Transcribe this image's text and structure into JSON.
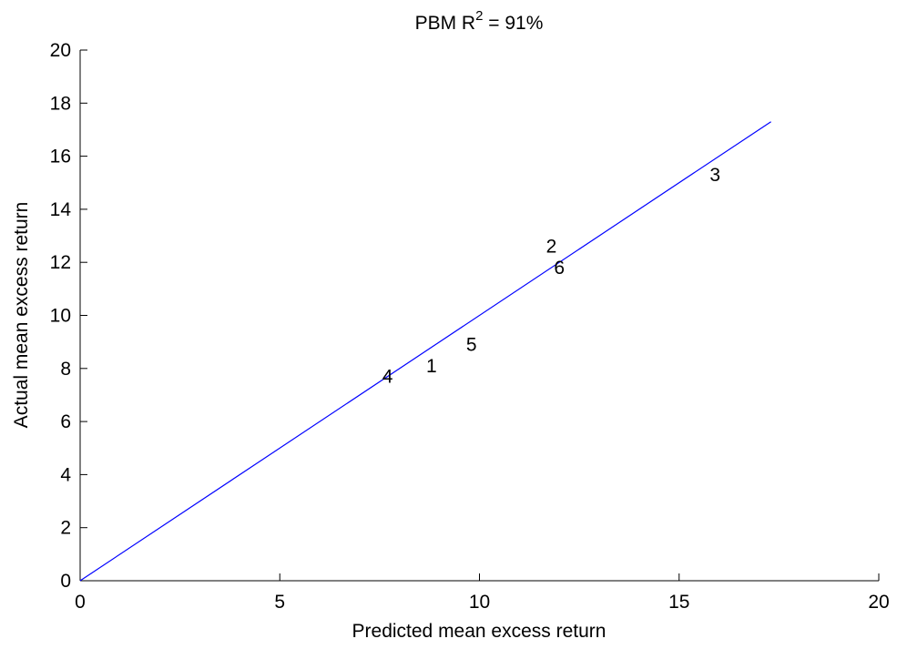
{
  "chart_data": {
    "type": "scatter",
    "title": {
      "prefix": "PBM R",
      "superscript": "2",
      "suffix": " = 91%"
    },
    "xlabel": "Predicted mean excess return",
    "ylabel": "Actual mean excess return",
    "xlim": [
      0,
      20
    ],
    "ylim": [
      0,
      20
    ],
    "x_ticks": [
      0,
      5,
      10,
      15,
      20
    ],
    "y_ticks": [
      0,
      2,
      4,
      6,
      8,
      10,
      12,
      14,
      16,
      18,
      20
    ],
    "grid": false,
    "points": [
      {
        "label": "1",
        "x": 8.8,
        "y": 8.1
      },
      {
        "label": "2",
        "x": 11.8,
        "y": 12.6
      },
      {
        "label": "3",
        "x": 15.9,
        "y": 15.3
      },
      {
        "label": "4",
        "x": 7.7,
        "y": 7.7
      },
      {
        "label": "5",
        "x": 9.8,
        "y": 8.9
      },
      {
        "label": "6",
        "x": 12.0,
        "y": 11.8
      }
    ],
    "fit_line": {
      "x": [
        0,
        17.3
      ],
      "y": [
        0,
        17.3
      ],
      "color": "#0000ff"
    },
    "colors": {
      "axis": "#000000",
      "line": "#0000ff",
      "text": "#000000"
    }
  }
}
